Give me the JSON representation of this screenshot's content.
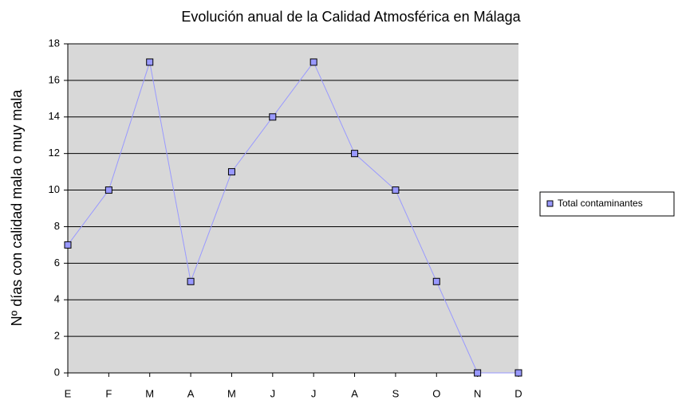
{
  "chart_data": {
    "type": "line",
    "title": "Evolución anual de la Calidad Atmosférica en Málaga",
    "y_label": "Nº días con calidad mala o muy mala",
    "categories": [
      "E",
      "F",
      "M",
      "A",
      "M",
      "J",
      "J",
      "A",
      "S",
      "O",
      "N",
      "D"
    ],
    "series": [
      {
        "name": "Total contaminantes",
        "color": "#9999ff",
        "values": [
          7,
          10,
          17,
          5,
          11,
          14,
          17,
          12,
          10,
          5,
          0,
          0
        ]
      }
    ],
    "ylim": [
      0,
      18
    ],
    "yticks": [
      0,
      2,
      4,
      6,
      8,
      10,
      12,
      14,
      16,
      18
    ],
    "grid": true,
    "legend": "right"
  }
}
